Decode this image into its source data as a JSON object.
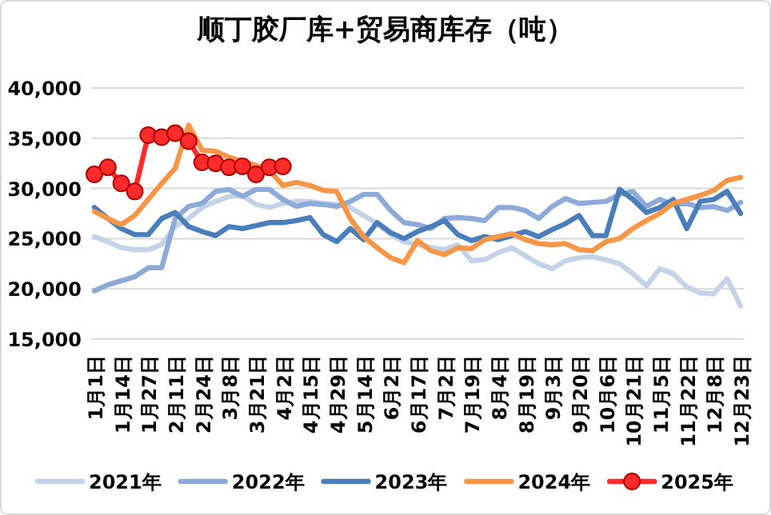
{
  "chart_data": {
    "type": "line",
    "title": "顺丁胶厂库+贸易商库存（吨）",
    "categories": [
      "1月1日",
      null,
      "1月14日",
      null,
      "1月27日",
      null,
      "2月11日",
      null,
      "2月24日",
      null,
      "3月8日",
      null,
      "3月21日",
      null,
      "4月2日",
      null,
      "4月15日",
      null,
      "4月29日",
      null,
      "5月14日",
      null,
      "6月2日",
      null,
      "6月17日",
      null,
      "7月2日",
      null,
      "7月19日",
      null,
      "8月4日",
      null,
      "8月19日",
      null,
      "9月3日",
      null,
      "9月20日",
      null,
      "10月6日",
      null,
      "10月21日",
      null,
      "11月5日",
      null,
      "11月22日",
      null,
      "12月8日",
      null,
      "12月23日"
    ],
    "series": [
      {
        "name": "2021年",
        "color": "#c5d3e8",
        "values": [
          25200,
          24700,
          24100,
          23900,
          23900,
          24400,
          26200,
          27000,
          28100,
          28700,
          29200,
          29300,
          28400,
          28100,
          28500,
          28700,
          28700,
          28500,
          28400,
          28100,
          27300,
          26500,
          25400,
          24700,
          24400,
          24100,
          23900,
          24400,
          22800,
          22900,
          23600,
          24100,
          23300,
          22500,
          22000,
          22800,
          23100,
          23200,
          22900,
          22500,
          21500,
          20300,
          22000,
          21500,
          20200,
          19600,
          19500,
          21000,
          18300
        ]
      },
      {
        "name": "2022年",
        "color": "#8eaad8",
        "values": [
          19800,
          20400,
          20800,
          21200,
          22100,
          22100,
          27000,
          28200,
          28500,
          29700,
          29900,
          29200,
          29900,
          29900,
          28900,
          28200,
          28500,
          28400,
          28200,
          28700,
          29400,
          29400,
          27800,
          26600,
          26400,
          26000,
          27000,
          27100,
          27000,
          26800,
          28100,
          28100,
          27800,
          27000,
          28200,
          29000,
          28500,
          28600,
          28700,
          29400,
          29700,
          28200,
          28900,
          28400,
          28500,
          28100,
          28200,
          27800,
          28600
        ]
      },
      {
        "name": "2023年",
        "color": "#4a7ebb",
        "values": [
          28100,
          27000,
          26000,
          25400,
          25400,
          27000,
          27600,
          26200,
          25700,
          25300,
          26200,
          26000,
          26300,
          26600,
          26600,
          26800,
          27100,
          25400,
          24700,
          26000,
          24900,
          26600,
          25600,
          25000,
          25700,
          26200,
          26800,
          25400,
          24800,
          25200,
          24900,
          25300,
          25700,
          25200,
          25900,
          26500,
          27300,
          25300,
          25300,
          29900,
          28900,
          27600,
          28100,
          28900,
          26000,
          28700,
          28900,
          29700,
          27500
        ]
      },
      {
        "name": "2024年",
        "color": "#f79646",
        "values": [
          27700,
          27000,
          26400,
          27300,
          28900,
          30500,
          32000,
          36300,
          33800,
          33700,
          33100,
          32700,
          32300,
          31800,
          30300,
          30600,
          30300,
          29800,
          29700,
          27000,
          25200,
          24100,
          23100,
          22600,
          24800,
          23800,
          23400,
          24100,
          24000,
          24900,
          25200,
          25500,
          24900,
          24500,
          24400,
          24500,
          23900,
          23800,
          24700,
          25000,
          26000,
          26800,
          27500,
          28500,
          28900,
          29300,
          29800,
          30800,
          31100
        ]
      },
      {
        "name": "2025年",
        "color": "#ff2a2a",
        "marker": "circle",
        "values": [
          31400,
          32100,
          30500,
          29700,
          35300,
          35100,
          35500,
          34700,
          32600,
          32500,
          32100,
          32200,
          31400,
          32100,
          32200,
          null,
          null,
          null,
          null,
          null,
          null,
          null,
          null,
          null,
          null,
          null,
          null,
          null,
          null,
          null,
          null,
          null,
          null,
          null,
          null,
          null,
          null,
          null,
          null,
          null,
          null,
          null,
          null,
          null,
          null,
          null,
          null,
          null,
          null
        ]
      }
    ],
    "ylim": [
      15000,
      40000
    ],
    "yticks": [
      {
        "value": 15000,
        "label": "15,000"
      },
      {
        "value": 20000,
        "label": "20,000"
      },
      {
        "value": 25000,
        "label": "25,000"
      },
      {
        "value": 30000,
        "label": "30,000"
      },
      {
        "value": 35000,
        "label": "35,000"
      },
      {
        "value": 40000,
        "label": "40,000"
      }
    ],
    "grid": "y",
    "legend": "bottom"
  }
}
